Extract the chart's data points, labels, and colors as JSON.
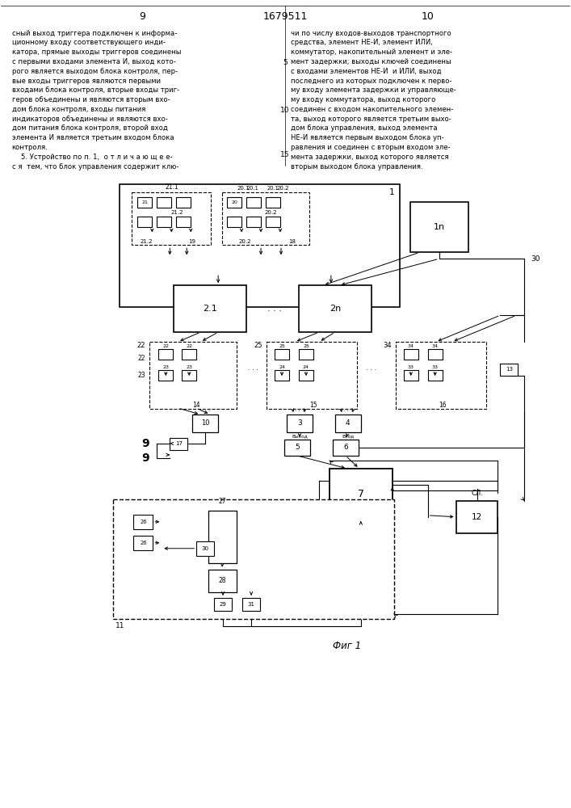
{
  "page_num_left": "9",
  "page_num_center": "1679511",
  "page_num_right": "10",
  "text_left": [
    "сный выход триггера подключен к информа-",
    "ционному входу соответствующего инди-",
    "катора, прямые выходы триггеров соединены",
    "с первыми входами элемента И, выход кото-",
    "рого является выходом блока контроля, пер-",
    "вые входы триггеров являются первыми",
    "входами блока контроля, вторые входы триг-",
    "геров объединены и являются вторым вхо-",
    "дом блока контроля, входы питания",
    "индикаторов объединены и являются вхо-",
    "дом питания блока контроля, второй вход",
    "элемента И является третьим входом блока",
    "контроля.",
    "    5. Устройство по п. 1,  о т л и ч а ю щ е е-",
    "с я  тем, что блок управления содержит клю-"
  ],
  "text_right": [
    "чи по числу входов-выходов транспортного",
    "средства, элемент НЕ-И, элемент ИЛИ,",
    "коммутатор, накопительный элемент и эле-",
    "мент задержки; выходы ключей соединены",
    "с входами элементов НЕ-И  и ИЛИ, выход",
    "последнего из которых подключен к перво-",
    "му входу элемента задержки и управляюще-",
    "му входу коммутатора, выход которого",
    "соединен с входом накопительного элемен-",
    "та, выход которого является третьим выхо-",
    "дом блока управления, выход элемента",
    "НЕ-И является первым выходом блока уп-",
    "равления и соединен с вторым входом эле-",
    "мента задержки, выход которого является",
    "вторым выходом блока управления."
  ],
  "caption": "Фиг 1",
  "bg": "#ffffff"
}
